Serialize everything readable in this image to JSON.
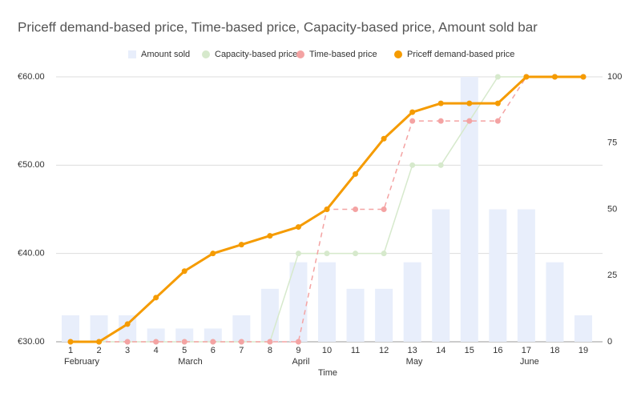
{
  "chart_data": {
    "type": "combo",
    "title": "Priceff demand-based price, Time-based price, Capacity-based price, Amount sold bar",
    "x_label": "Time",
    "categories": [
      "1",
      "2",
      "3",
      "4",
      "5",
      "6",
      "7",
      "8",
      "9",
      "10",
      "11",
      "12",
      "13",
      "14",
      "15",
      "16",
      "17",
      "18",
      "19"
    ],
    "month_labels": [
      "February",
      null,
      null,
      null,
      "March",
      null,
      null,
      null,
      "April",
      null,
      null,
      null,
      "May",
      null,
      null,
      null,
      "June",
      null,
      null
    ],
    "ylim": [
      30,
      60
    ],
    "yticks": [
      {
        "value": 30,
        "label": "€30.00"
      },
      {
        "value": 40,
        "label": "€40.00"
      },
      {
        "value": 50,
        "label": "€50.00"
      },
      {
        "value": 60,
        "label": "€60.00"
      }
    ],
    "y2lim": [
      0,
      100
    ],
    "y2ticks": [
      0,
      25,
      50,
      75,
      100
    ],
    "grid": true,
    "legend": "top",
    "series": [
      {
        "name": "Amount sold",
        "type": "bar",
        "axis": "y2",
        "color": "#e8eefb",
        "values": [
          10,
          10,
          10,
          5,
          5,
          5,
          10,
          20,
          30,
          30,
          20,
          20,
          30,
          50,
          100,
          50,
          50,
          30,
          10
        ]
      },
      {
        "name": "Capacity-based price",
        "type": "line",
        "color": "#d6e9cc",
        "dashed": false,
        "values": [
          30,
          30,
          30,
          30,
          30,
          30,
          30,
          30,
          40,
          40,
          40,
          40,
          50,
          50,
          55,
          60,
          60,
          60,
          60
        ]
      },
      {
        "name": "Time-based price",
        "type": "line",
        "color": "#f4a3a3",
        "dashed": true,
        "values": [
          30,
          30,
          30,
          30,
          30,
          30,
          30,
          30,
          30,
          45,
          45,
          45,
          55,
          55,
          55,
          55,
          60,
          60,
          60
        ]
      },
      {
        "name": "Priceff demand-based price",
        "type": "line",
        "color": "#f59b00",
        "dashed": false,
        "thick": true,
        "values": [
          30,
          30,
          32,
          35,
          38,
          40,
          41,
          42,
          43,
          45,
          49,
          53,
          56,
          57,
          57,
          57,
          60,
          60,
          60
        ]
      }
    ]
  }
}
